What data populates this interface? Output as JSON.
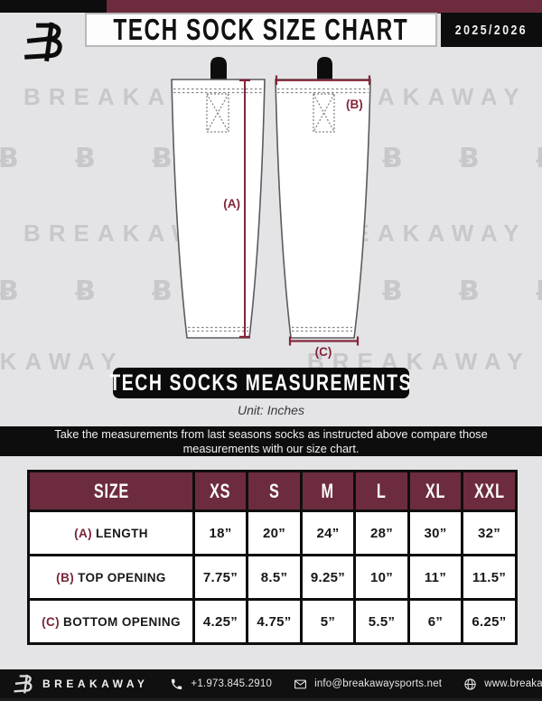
{
  "header": {
    "title": "TECH SOCK SIZE CHART",
    "season": "2025/2026"
  },
  "watermark": {
    "text": "BREAKAWAY",
    "logo_glyph": "Ƀ"
  },
  "diagram": {
    "label_a": "(A)",
    "label_b": "(B)",
    "label_c": "(C)"
  },
  "banner": {
    "label": "TECH SOCKS MEASUREMENTS"
  },
  "unit_note": "Unit: Inches",
  "instruction": "Take the measurements from last seasons socks as instructed above compare those measurements  with our size chart.",
  "chart_data": {
    "type": "table",
    "headers": [
      "SIZE",
      "XS",
      "S",
      "M",
      "L",
      "XL",
      "XXL"
    ],
    "rows": [
      {
        "prefix": "(A)",
        "label": "LENGTH",
        "values": [
          "18”",
          "20”",
          "24”",
          "28”",
          "30”",
          "32”"
        ]
      },
      {
        "prefix": "(B)",
        "label": "TOP OPENING",
        "values": [
          "7.75”",
          "8.5”",
          "9.25”",
          "10”",
          "11”",
          "11.5”"
        ]
      },
      {
        "prefix": "(C)",
        "label": "BOTTOM OPENING",
        "values": [
          "4.25”",
          "4.75”",
          "5”",
          "5.5”",
          "6”",
          "6.25”"
        ]
      }
    ]
  },
  "footer": {
    "brand": "BREAKAWAY",
    "phone": "+1.973.845.2910",
    "email": "info@breakawaysports.net",
    "website": "www.breakawaysports.net"
  },
  "colors": {
    "background": "#e4e4e6",
    "maroon": "#6d2c3e",
    "measure_accent": "#84253a",
    "black": "#0d0d0d",
    "watermark_gray": "#c8c8cb"
  }
}
